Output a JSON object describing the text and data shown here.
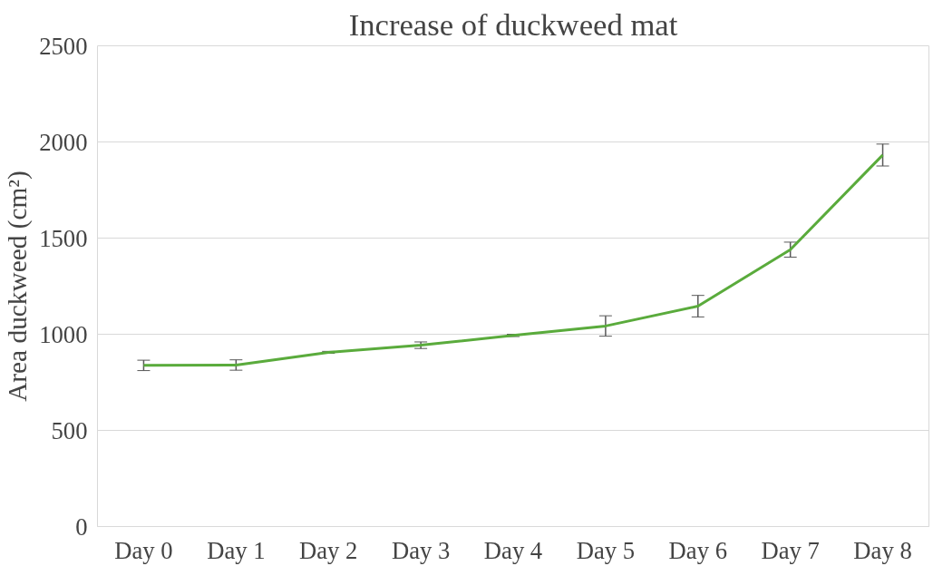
{
  "chart_data": {
    "type": "line",
    "title": "Increase of duckweed mat",
    "ylabel": "Area duckweed (cm²)",
    "categories": [
      "Day 0",
      "Day 1",
      "Day 2",
      "Day 3",
      "Day 4",
      "Day 5",
      "Day 6",
      "Day 7",
      "Day 8"
    ],
    "series": [
      {
        "color": "#5aab3c",
        "values": [
          838,
          840,
          906,
          943,
          994,
          1043,
          1146,
          1440,
          1932
        ],
        "errors": [
          27,
          27,
          5,
          17,
          6,
          53,
          56,
          39,
          57
        ]
      }
    ],
    "ylim": [
      0,
      2500
    ],
    "yticks": [
      0,
      500,
      1000,
      1500,
      2000,
      2500
    ],
    "grid": "y",
    "marker": "none",
    "line_style": "solid"
  }
}
